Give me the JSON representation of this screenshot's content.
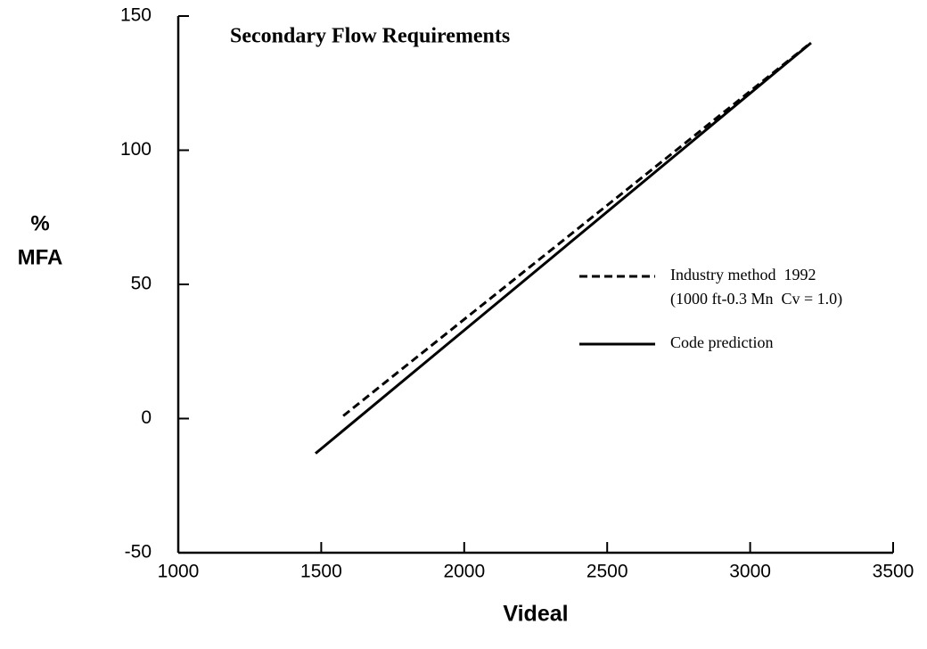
{
  "chart_data": {
    "type": "line",
    "title": "Secondary Flow Requirements",
    "xlabel": "Videal",
    "ylabel_lines": [
      "%",
      "MFA"
    ],
    "xlim": [
      1000,
      3500
    ],
    "xticks": [
      1000,
      1500,
      2000,
      2500,
      3000,
      3500
    ],
    "ylim": [
      -50,
      150
    ],
    "yticks": [
      -50,
      0,
      50,
      100,
      150
    ],
    "series": [
      {
        "name": "Industry method  1992",
        "color": "#000000",
        "dash": true,
        "x": [
          1577,
          3200
        ],
        "y": [
          1,
          139
        ]
      },
      {
        "name": "Code prediction",
        "color": "#000000",
        "dash": false,
        "x": [
          1480,
          3213
        ],
        "y": [
          -13,
          140
        ]
      }
    ],
    "legend_note": "(1000 ft-0.3 Mn  Cv = 1.0)"
  }
}
